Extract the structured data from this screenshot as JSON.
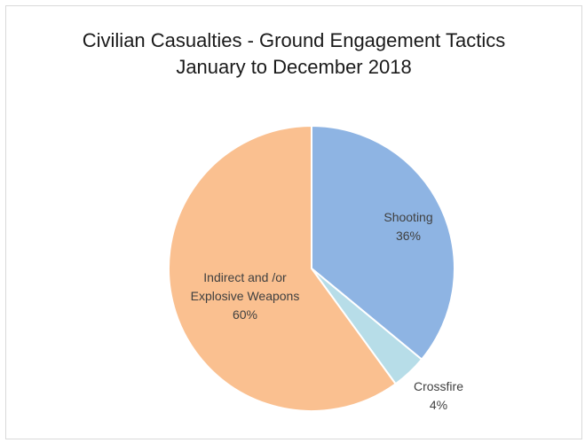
{
  "chart_data": {
    "type": "pie",
    "title": "Civilian Casualties - Ground Engagement Tactics",
    "subtitle": "January to December  2018",
    "slices": [
      {
        "label": "Shooting",
        "value": 36,
        "value_label": "36%",
        "color": "#8eb4e3"
      },
      {
        "label": "Crossfire",
        "value": 4,
        "value_label": "4%",
        "color": "#b7dde8"
      },
      {
        "label_lines": [
          "Indirect and /or",
          "Explosive Weapons"
        ],
        "value": 60,
        "value_label": "60%",
        "color": "#fac090"
      }
    ],
    "legend": "none",
    "start_angle": "12 o'clock",
    "direction": "clockwise"
  }
}
